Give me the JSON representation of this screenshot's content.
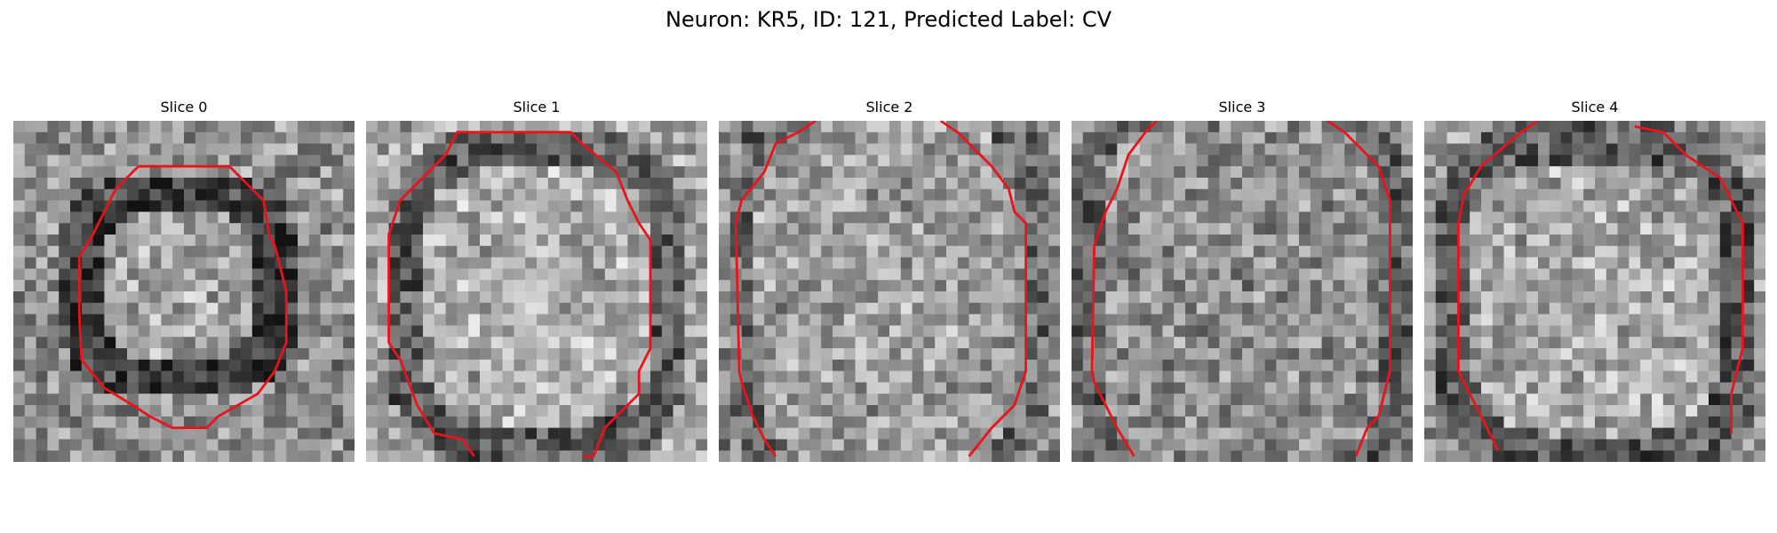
{
  "figure": {
    "title": "Neuron: KR5, ID: 121, Predicted Label: CV"
  },
  "panels": [
    {
      "title": "Slice 0"
    },
    {
      "title": "Slice 1"
    },
    {
      "title": "Slice 2"
    },
    {
      "title": "Slice 3"
    },
    {
      "title": "Slice 4"
    }
  ],
  "style": {
    "contour_color": "#e8141a",
    "grayscale_min": "#141414",
    "grayscale_max": "#f2f2f2"
  }
}
